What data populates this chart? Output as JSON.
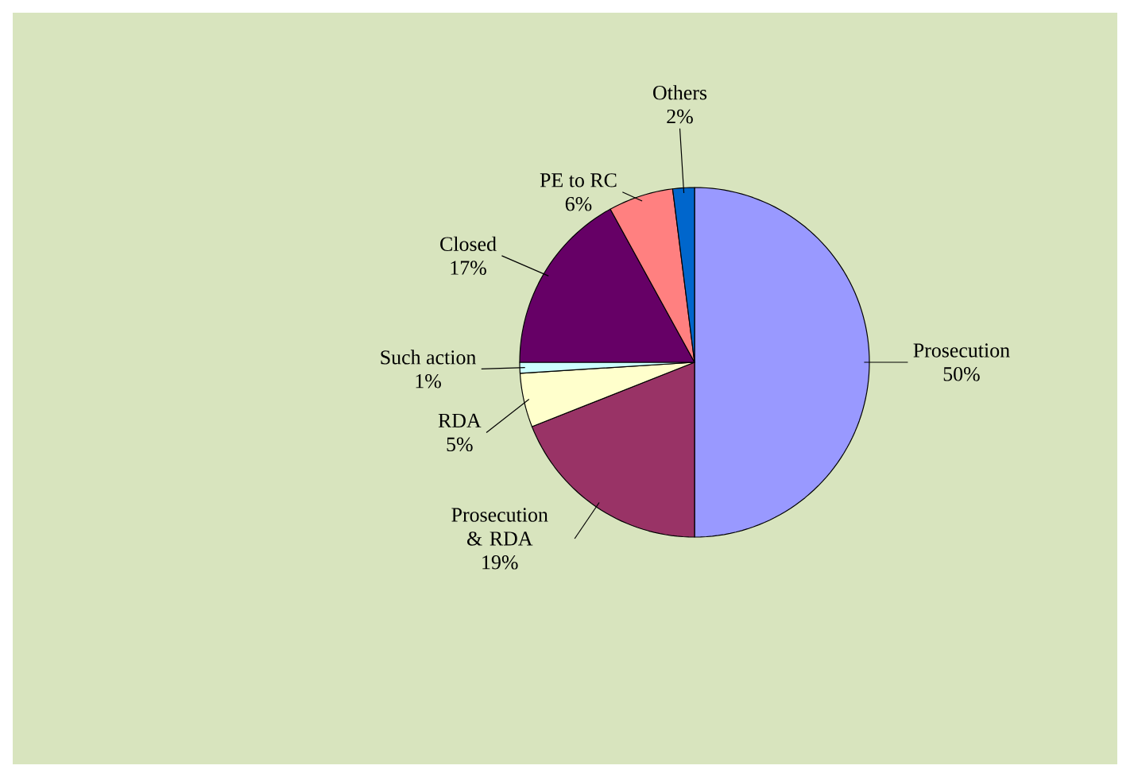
{
  "chart_data": {
    "type": "pie",
    "categories": [
      "Prosecution",
      "Prosecution & RDA",
      "RDA",
      "Such action",
      "Closed",
      "PE to RC",
      "Others"
    ],
    "values": [
      50,
      19,
      5,
      1,
      17,
      6,
      2
    ],
    "value_labels": [
      "50%",
      "19%",
      "5%",
      "1%",
      "17%",
      "6%",
      "2%"
    ],
    "colors": [
      "#9999ff",
      "#993366",
      "#ffffcc",
      "#ccffff",
      "#660066",
      "#ff8080",
      "#0066cc"
    ]
  }
}
